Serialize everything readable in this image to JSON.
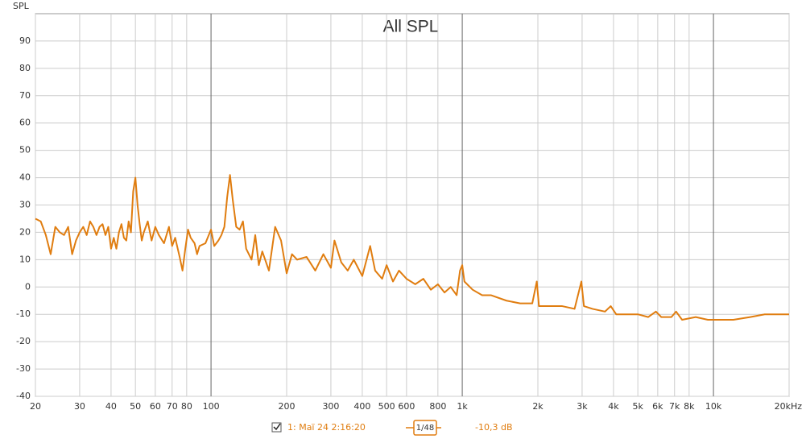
{
  "chart_data": {
    "type": "line",
    "title": "All SPL",
    "ylabel": "SPL",
    "xscale": "log",
    "xlim": [
      20,
      20000
    ],
    "xticks": [
      20,
      30,
      40,
      50,
      60,
      70,
      80,
      100,
      200,
      300,
      400,
      500,
      600,
      800,
      {
        "value": 1000,
        "label": "1k"
      },
      {
        "value": 2000,
        "label": "2k"
      },
      {
        "value": 3000,
        "label": "3k"
      },
      {
        "value": 4000,
        "label": "4k"
      },
      {
        "value": 5000,
        "label": "5k"
      },
      {
        "value": 6000,
        "label": "6k"
      },
      {
        "value": 7000,
        "label": "7k"
      },
      {
        "value": 8000,
        "label": "8k"
      },
      {
        "value": 10000,
        "label": "10k"
      },
      {
        "value": 20000,
        "label": "20kHz"
      }
    ],
    "ylim": [
      -40,
      100
    ],
    "yticks": [
      -40,
      -30,
      -20,
      -10,
      0,
      10,
      20,
      30,
      40,
      50,
      60,
      70,
      80,
      90
    ],
    "grid": true,
    "x": [
      20,
      21,
      22,
      23,
      24,
      25,
      26,
      27,
      28,
      29,
      30,
      31,
      32,
      33,
      34,
      35,
      36,
      37,
      38,
      39,
      40,
      41,
      42,
      43,
      44,
      45,
      46,
      47,
      48,
      49,
      50,
      51,
      52,
      53,
      54,
      56,
      58,
      60,
      62,
      65,
      68,
      70,
      72,
      75,
      77,
      79,
      81,
      83,
      86,
      88,
      90,
      95,
      100,
      103,
      107,
      110,
      113,
      116,
      119,
      122,
      126,
      130,
      134,
      138,
      145,
      150,
      155,
      160,
      170,
      180,
      190,
      200,
      210,
      220,
      240,
      260,
      280,
      300,
      310,
      330,
      350,
      370,
      400,
      430,
      450,
      480,
      500,
      530,
      560,
      600,
      650,
      700,
      750,
      800,
      850,
      900,
      950,
      980,
      1000,
      1020,
      1100,
      1200,
      1300,
      1500,
      1700,
      1900,
      1980,
      2020,
      2200,
      2500,
      2800,
      2980,
      3050,
      3300,
      3700,
      3900,
      4100,
      4500,
      5000,
      5500,
      5900,
      6200,
      6800,
      7100,
      7500,
      8500,
      9500,
      10000,
      11000,
      12000,
      14000,
      16000,
      18000,
      20000
    ],
    "series": [
      {
        "name": "1: Maï 24 2:16:20",
        "color": "#e07d10",
        "values": [
          25,
          24,
          19,
          12,
          22,
          20,
          19,
          22,
          12,
          17,
          20,
          22,
          19,
          24,
          22,
          19,
          22,
          23,
          19,
          22,
          14,
          18,
          14,
          20,
          23,
          18,
          17,
          24,
          20,
          35,
          40,
          30,
          23,
          17,
          20,
          24,
          17,
          22,
          19,
          16,
          22,
          15,
          18,
          11,
          6,
          14,
          21,
          18,
          16,
          12,
          15,
          16,
          21,
          15,
          17,
          19,
          22,
          33,
          41,
          32,
          22,
          21,
          24,
          14,
          10,
          19,
          8,
          13,
          6,
          22,
          17,
          5,
          12,
          10,
          11,
          6,
          12,
          7,
          17,
          9,
          6,
          10,
          4,
          15,
          6,
          3,
          8,
          2,
          6,
          3,
          1,
          3,
          -1,
          1,
          -2,
          0,
          -3,
          6,
          8,
          2,
          -1,
          -3,
          -3,
          -5,
          -6,
          -6,
          2,
          -7,
          -7,
          -7,
          -8,
          2,
          -7,
          -8,
          -9,
          -7,
          -10,
          -10,
          -10,
          -11,
          -9,
          -11,
          -11,
          -9,
          -12,
          -11,
          -12,
          -12,
          -12,
          -12,
          -11,
          -10,
          -10,
          -10
        ]
      }
    ],
    "smoothing": "1/48",
    "level": "-10,3 dB"
  }
}
